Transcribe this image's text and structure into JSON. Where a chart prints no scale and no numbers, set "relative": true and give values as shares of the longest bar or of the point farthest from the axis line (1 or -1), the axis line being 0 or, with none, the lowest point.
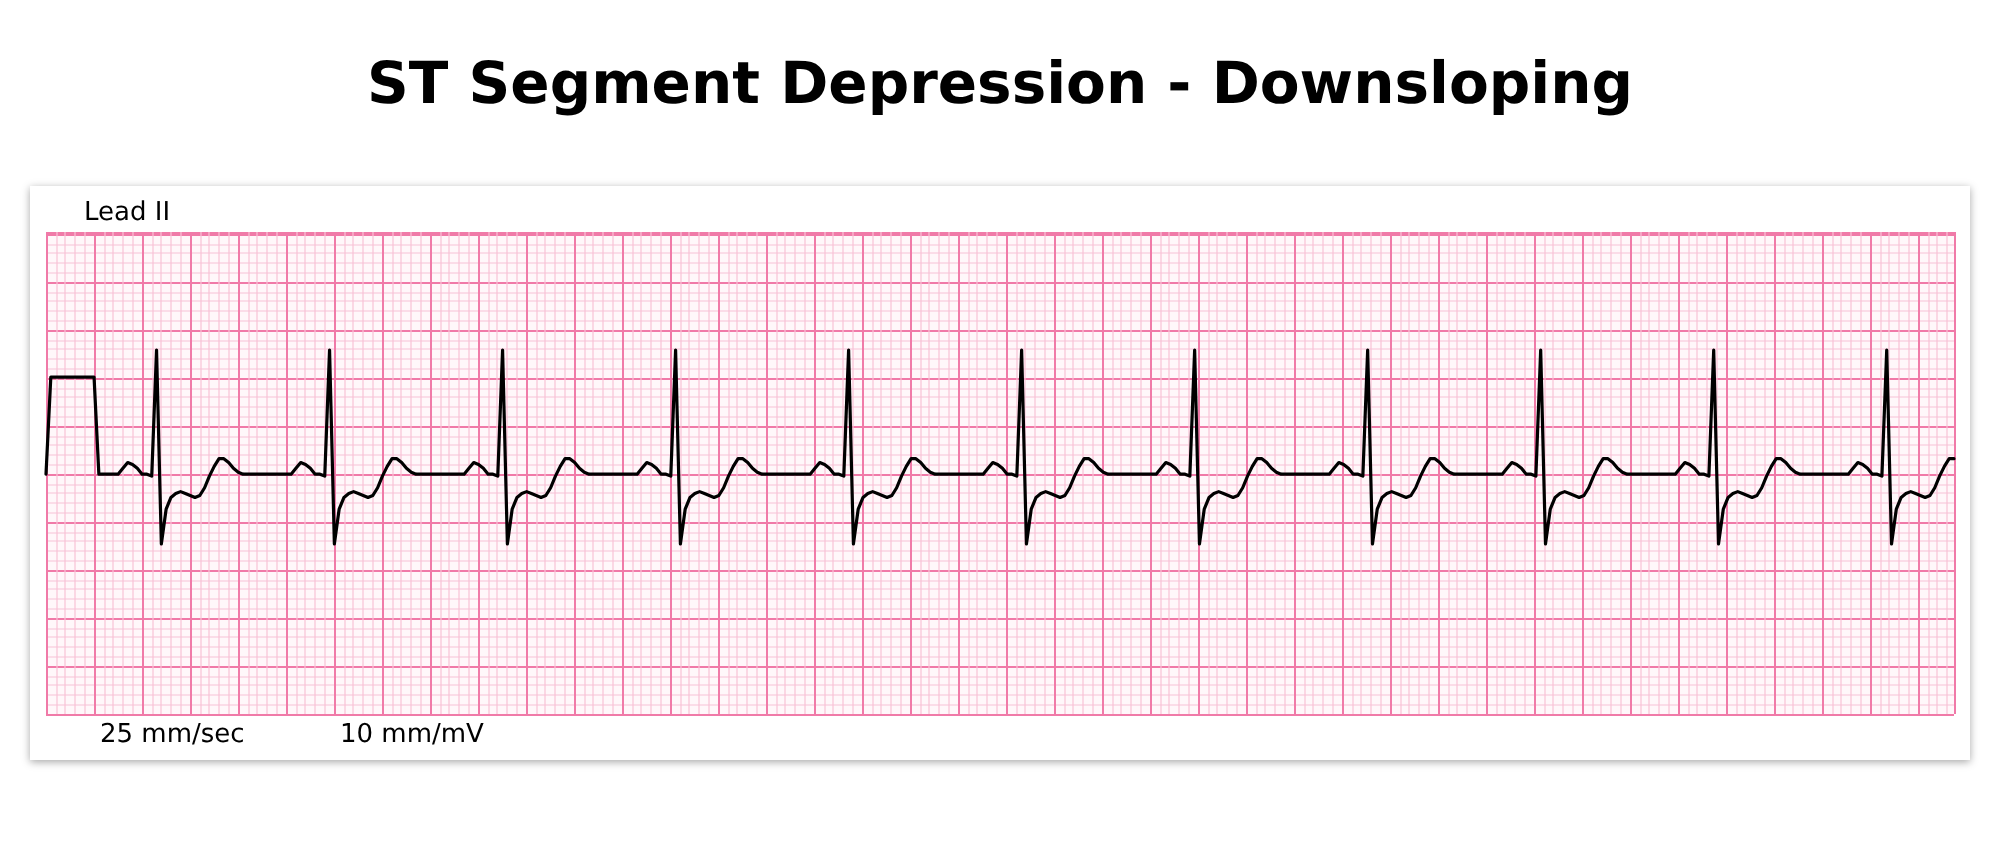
{
  "chart_data": {
    "type": "line",
    "title": "ST Segment Depression - Downsloping",
    "annotations": [
      "Lead II",
      "25 mm/sec",
      "10 mm/mV"
    ],
    "relative": true,
    "grid": true,
    "color": "#000000",
    "categories": [
      null,
      null,
      null,
      null,
      null,
      null,
      null,
      null,
      null,
      null,
      null,
      null,
      null,
      null,
      null,
      null,
      null,
      null,
      null,
      null,
      null,
      null,
      null,
      null,
      null,
      null,
      null,
      null,
      null,
      null,
      null,
      null,
      null,
      null,
      null,
      null,
      null,
      null,
      null,
      null,
      null,
      null,
      null,
      null,
      null,
      null,
      null,
      null,
      null,
      null,
      null,
      null,
      null,
      null,
      null,
      null,
      null,
      null,
      null,
      null,
      null,
      null,
      null,
      null,
      null,
      null,
      null,
      null,
      null,
      null,
      null,
      null,
      null,
      null,
      null,
      null,
      null,
      null,
      null,
      null,
      null,
      null,
      null,
      null,
      null,
      null,
      null,
      null,
      null,
      null,
      null,
      null,
      null,
      null,
      null,
      null,
      null,
      null,
      null,
      null,
      null,
      null,
      null,
      null,
      null,
      null,
      null,
      null,
      null,
      null,
      null,
      null,
      null,
      null,
      null,
      null,
      null,
      null,
      null,
      null,
      null,
      null,
      null,
      null,
      null,
      null,
      null,
      null,
      null,
      null,
      null,
      null,
      null,
      null,
      null,
      null,
      null,
      null,
      null,
      null,
      null,
      null,
      null,
      null,
      null,
      null,
      null,
      null,
      null,
      null,
      null,
      null,
      null,
      null,
      null,
      null,
      null,
      null,
      null,
      null,
      null,
      null,
      null,
      null,
      null,
      null,
      null,
      null,
      null,
      null,
      null,
      null,
      null,
      null,
      null,
      null,
      null,
      null,
      null,
      null,
      null,
      null,
      null,
      null,
      null,
      null,
      null,
      null,
      null,
      null,
      null,
      null,
      null,
      null,
      null,
      null,
      null,
      null,
      null,
      null,
      null,
      null,
      null,
      null,
      null,
      null,
      null,
      null,
      null,
      null,
      null,
      null,
      null,
      null,
      null,
      null,
      null,
      null,
      null,
      null,
      null,
      null,
      null,
      null,
      null,
      null,
      null,
      null,
      null,
      null,
      null,
      null,
      null,
      null,
      null,
      null,
      null,
      null,
      null,
      null,
      null,
      null,
      null,
      null,
      null,
      null,
      null,
      null,
      null,
      null,
      null,
      null,
      null,
      null,
      null,
      null,
      null,
      null,
      null,
      null,
      null,
      null,
      null,
      null,
      null,
      null,
      null,
      null,
      null,
      null,
      null,
      null,
      null,
      null,
      null,
      null,
      null,
      null,
      null,
      null,
      null,
      null,
      null,
      null,
      null,
      null,
      null,
      null,
      null,
      null,
      null,
      null,
      null,
      null,
      null,
      null,
      null,
      null,
      null,
      null,
      null,
      null,
      null,
      null,
      null,
      null,
      null,
      null,
      null,
      null,
      null,
      null,
      null,
      null,
      null,
      null,
      null,
      null,
      null,
      null,
      null,
      null,
      null,
      null,
      null,
      null,
      null,
      null,
      null,
      null,
      null,
      null,
      null,
      null,
      null,
      null,
      null,
      null,
      null,
      null,
      null,
      null,
      null,
      null,
      null,
      null,
      null,
      null,
      null,
      null,
      null,
      null,
      null,
      null,
      null,
      null,
      null,
      null,
      null,
      null,
      null,
      null,
      null,
      null,
      null,
      null,
      null,
      null,
      null,
      null,
      null,
      null,
      null,
      null,
      null,
      null,
      null,
      null,
      null,
      null,
      null,
      null,
      null,
      null,
      null,
      null,
      null,
      null,
      null,
      null,
      null,
      null,
      null,
      null,
      null,
      null,
      null,
      null
    ],
    "values": [
      0.36,
      0.86,
      0.86,
      0.86,
      0.86,
      0.86,
      0.86,
      0.86,
      0.86,
      0.86,
      0.86,
      0.36,
      0.36,
      0.36,
      0.36,
      0.36,
      0.39,
      0.42,
      0.41,
      0.39,
      0.36,
      0.36,
      0.35,
      1,
      0,
      0.18,
      0.24,
      0.26,
      0.27,
      0.26,
      0.25,
      0.24,
      0.25,
      0.29,
      0.35,
      0.4,
      0.44,
      0.44,
      0.42,
      0.39,
      0.37,
      0.36,
      0.36,
      0.36,
      0.36,
      0.36,
      0.36,
      0.36,
      0.36,
      0.36,
      0.36,
      0.36,
      0.39,
      0.42,
      0.41,
      0.39,
      0.36,
      0.36,
      0.35,
      1,
      0,
      0.18,
      0.24,
      0.26,
      0.27,
      0.26,
      0.25,
      0.24,
      0.25,
      0.29,
      0.35,
      0.4,
      0.44,
      0.44,
      0.42,
      0.39,
      0.37,
      0.36,
      0.36,
      0.36,
      0.36,
      0.36,
      0.36,
      0.36,
      0.36,
      0.36,
      0.36,
      0.36,
      0.39,
      0.42,
      0.41,
      0.39,
      0.36,
      0.36,
      0.35,
      1,
      0,
      0.18,
      0.24,
      0.26,
      0.27,
      0.26,
      0.25,
      0.24,
      0.25,
      0.29,
      0.35,
      0.4,
      0.44,
      0.44,
      0.42,
      0.39,
      0.37,
      0.36,
      0.36,
      0.36,
      0.36,
      0.36,
      0.36,
      0.36,
      0.36,
      0.36,
      0.36,
      0.36,
      0.39,
      0.42,
      0.41,
      0.39,
      0.36,
      0.36,
      0.35,
      1,
      0,
      0.18,
      0.24,
      0.26,
      0.27,
      0.26,
      0.25,
      0.24,
      0.25,
      0.29,
      0.35,
      0.4,
      0.44,
      0.44,
      0.42,
      0.39,
      0.37,
      0.36,
      0.36,
      0.36,
      0.36,
      0.36,
      0.36,
      0.36,
      0.36,
      0.36,
      0.36,
      0.36,
      0.39,
      0.42,
      0.41,
      0.39,
      0.36,
      0.36,
      0.35,
      1,
      0,
      0.18,
      0.24,
      0.26,
      0.27,
      0.26,
      0.25,
      0.24,
      0.25,
      0.29,
      0.35,
      0.4,
      0.44,
      0.44,
      0.42,
      0.39,
      0.37,
      0.36,
      0.36,
      0.36,
      0.36,
      0.36,
      0.36,
      0.36,
      0.36,
      0.36,
      0.36,
      0.36,
      0.39,
      0.42,
      0.41,
      0.39,
      0.36,
      0.36,
      0.35,
      1,
      0,
      0.18,
      0.24,
      0.26,
      0.27,
      0.26,
      0.25,
      0.24,
      0.25,
      0.29,
      0.35,
      0.4,
      0.44,
      0.44,
      0.42,
      0.39,
      0.37,
      0.36,
      0.36,
      0.36,
      0.36,
      0.36,
      0.36,
      0.36,
      0.36,
      0.36,
      0.36,
      0.36,
      0.39,
      0.42,
      0.41,
      0.39,
      0.36,
      0.36,
      0.35,
      1,
      0,
      0.18,
      0.24,
      0.26,
      0.27,
      0.26,
      0.25,
      0.24,
      0.25,
      0.29,
      0.35,
      0.4,
      0.44,
      0.44,
      0.42,
      0.39,
      0.37,
      0.36,
      0.36,
      0.36,
      0.36,
      0.36,
      0.36,
      0.36,
      0.36,
      0.36,
      0.36,
      0.36,
      0.39,
      0.42,
      0.41,
      0.39,
      0.36,
      0.36,
      0.35,
      1,
      0,
      0.18,
      0.24,
      0.26,
      0.27,
      0.26,
      0.25,
      0.24,
      0.25,
      0.29,
      0.35,
      0.4,
      0.44,
      0.44,
      0.42,
      0.39,
      0.37,
      0.36,
      0.36,
      0.36,
      0.36,
      0.36,
      0.36,
      0.36,
      0.36,
      0.36,
      0.36,
      0.36,
      0.39,
      0.42,
      0.41,
      0.39,
      0.36,
      0.36,
      0.35,
      1,
      0,
      0.18,
      0.24,
      0.26,
      0.27,
      0.26,
      0.25,
      0.24,
      0.25,
      0.29,
      0.35,
      0.4,
      0.44,
      0.44,
      0.42,
      0.39,
      0.37,
      0.36,
      0.36,
      0.36,
      0.36,
      0.36,
      0.36,
      0.36,
      0.36,
      0.36,
      0.36,
      0.36,
      0.39,
      0.42,
      0.41,
      0.39,
      0.36,
      0.36,
      0.35,
      1,
      0,
      0.18,
      0.24,
      0.26,
      0.27,
      0.26,
      0.25,
      0.24,
      0.25,
      0.29,
      0.35,
      0.4,
      0.44,
      0.44,
      0.42,
      0.39,
      0.37,
      0.36,
      0.36,
      0.36,
      0.36,
      0.36,
      0.36,
      0.36,
      0.36,
      0.36,
      0.36,
      0.36,
      0.39,
      0.42,
      0.41,
      0.39,
      0.36,
      0.36,
      0.35,
      1,
      0,
      0.18,
      0.24,
      0.26,
      0.27,
      0.26,
      0.25,
      0.24,
      0.25,
      0.29,
      0.35,
      0.4,
      0.44,
      0.44
    ]
  }
}
